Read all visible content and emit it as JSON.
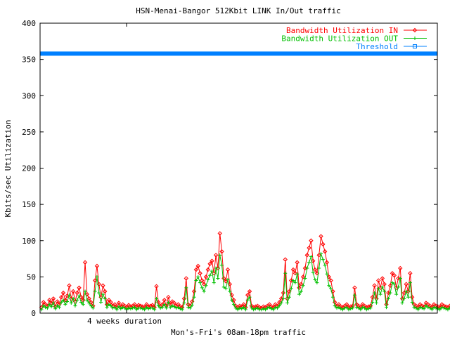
{
  "chart_data": {
    "type": "line",
    "title": "HSN-Menai-Bangor 512Kbit LINK In/Out traffic",
    "xlabel": "Mon's-Fri's 08am-18pm traffic",
    "ylabel": "Kbits/sec Utilization",
    "x_annotation": "4 weeks duration",
    "ylim": [
      0,
      400
    ],
    "y_ticks": [
      "0",
      "50",
      "100",
      "150",
      "200",
      "250",
      "300",
      "350",
      "400"
    ],
    "grid": false,
    "legend_position": "top-right",
    "x_count": 200,
    "series": [
      {
        "name": "Bandwidth Utilization IN",
        "color": "#ff0000",
        "marker": "diamond",
        "values": [
          8,
          15,
          12,
          10,
          18,
          14,
          20,
          9,
          16,
          12,
          22,
          28,
          18,
          24,
          38,
          20,
          30,
          16,
          28,
          35,
          22,
          18,
          70,
          26,
          20,
          15,
          10,
          45,
          65,
          40,
          22,
          38,
          30,
          12,
          18,
          15,
          10,
          12,
          8,
          14,
          9,
          12,
          10,
          8,
          11,
          9,
          10,
          12,
          8,
          11,
          10,
          9,
          8,
          12,
          9,
          10,
          11,
          8,
          37,
          15,
          10,
          12,
          18,
          10,
          22,
          12,
          16,
          14,
          10,
          12,
          9,
          8,
          20,
          48,
          12,
          10,
          16,
          30,
          60,
          65,
          55,
          45,
          40,
          50,
          60,
          68,
          72,
          55,
          80,
          62,
          110,
          85,
          48,
          44,
          60,
          40,
          25,
          18,
          10,
          8,
          10,
          9,
          12,
          8,
          25,
          30,
          10,
          8,
          9,
          10,
          8,
          7,
          9,
          8,
          10,
          12,
          9,
          8,
          12,
          10,
          15,
          20,
          28,
          74,
          20,
          30,
          45,
          60,
          55,
          70,
          35,
          40,
          50,
          62,
          80,
          90,
          100,
          72,
          60,
          55,
          80,
          106,
          95,
          85,
          70,
          50,
          45,
          30,
          15,
          10,
          12,
          9,
          8,
          10,
          12,
          8,
          9,
          10,
          35,
          12,
          10,
          8,
          12,
          10,
          8,
          9,
          10,
          22,
          38,
          20,
          45,
          35,
          48,
          40,
          12,
          28,
          38,
          55,
          52,
          35,
          48,
          62,
          20,
          28,
          40,
          30,
          55,
          22,
          12,
          10,
          8,
          12,
          10,
          9,
          14,
          12,
          10,
          8,
          12,
          10,
          9,
          8,
          12,
          10,
          9,
          8,
          10,
          12,
          52,
          8,
          9,
          10,
          8
        ]
      },
      {
        "name": "Bandwidth Utilization OUT",
        "color": "#00c000",
        "marker": "plus",
        "values": [
          5,
          10,
          8,
          7,
          12,
          9,
          14,
          6,
          10,
          8,
          15,
          18,
          12,
          16,
          25,
          14,
          20,
          10,
          18,
          24,
          15,
          12,
          30,
          18,
          14,
          10,
          7,
          30,
          50,
          28,
          15,
          26,
          20,
          8,
          12,
          10,
          7,
          8,
          5,
          9,
          6,
          8,
          7,
          5,
          7,
          6,
          7,
          8,
          5,
          7,
          7,
          6,
          5,
          8,
          6,
          7,
          7,
          5,
          20,
          10,
          7,
          8,
          12,
          7,
          15,
          8,
          10,
          9,
          7,
          8,
          6,
          5,
          14,
          35,
          8,
          7,
          11,
          22,
          45,
          50,
          42,
          35,
          30,
          38,
          46,
          52,
          58,
          42,
          62,
          48,
          80,
          66,
          36,
          34,
          46,
          30,
          18,
          12,
          7,
          5,
          7,
          6,
          8,
          5,
          18,
          22,
          7,
          5,
          6,
          7,
          5,
          5,
          6,
          5,
          7,
          8,
          6,
          5,
          8,
          7,
          10,
          14,
          20,
          55,
          14,
          22,
          34,
          45,
          42,
          54,
          26,
          30,
          38,
          48,
          62,
          70,
          78,
          56,
          46,
          42,
          62,
          82,
          74,
          66,
          54,
          38,
          34,
          22,
          10,
          7,
          8,
          6,
          5,
          7,
          8,
          5,
          6,
          7,
          25,
          8,
          7,
          5,
          8,
          7,
          5,
          6,
          7,
          15,
          28,
          14,
          34,
          26,
          36,
          30,
          8,
          20,
          28,
          42,
          40,
          26,
          36,
          48,
          14,
          20,
          30,
          22,
          42,
          15,
          8,
          7,
          5,
          8,
          7,
          6,
          10,
          8,
          7,
          5,
          8,
          7,
          6,
          5,
          8,
          7,
          6,
          5,
          7,
          8,
          38,
          5,
          6,
          7,
          5
        ]
      },
      {
        "name": "Threshold",
        "color": "#0080ff",
        "marker": "square",
        "constant": 358
      }
    ]
  }
}
